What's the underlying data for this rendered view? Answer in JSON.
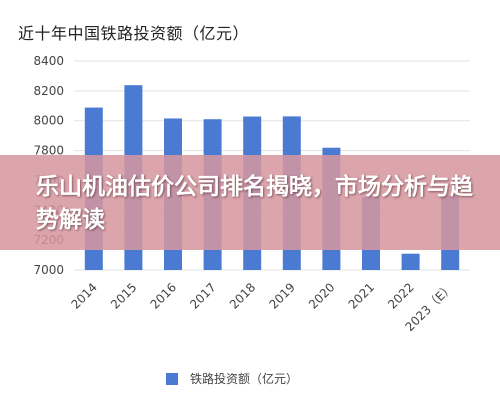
{
  "chart_data": {
    "type": "bar",
    "title": "近十年中国铁路投资额（亿元）",
    "categories": [
      "2014",
      "2015",
      "2016",
      "2017",
      "2018",
      "2019",
      "2020",
      "2021",
      "2022",
      "2023（E）"
    ],
    "series": [
      {
        "name": "铁路投资额（亿元）",
        "values": [
          8088,
          8238,
          8015,
          8010,
          8028,
          8029,
          7819,
          7489,
          7109,
          7500
        ]
      }
    ],
    "y_ticks": [
      "7000",
      "7200",
      "7400",
      "7600",
      "7800",
      "8000",
      "8200",
      "8400"
    ],
    "ylim": [
      7000,
      8400
    ],
    "grid": true,
    "legend_position": "bottom",
    "colors": {
      "bar": "#4a7ad1",
      "grid": "#e3e3e3",
      "axis_text": "#444444"
    }
  },
  "overlay": {
    "text": "乐山机油估价公司排名揭晓，市场分析与趋势解读",
    "band_color": "#d6969e",
    "text_color": "#ffffff"
  }
}
